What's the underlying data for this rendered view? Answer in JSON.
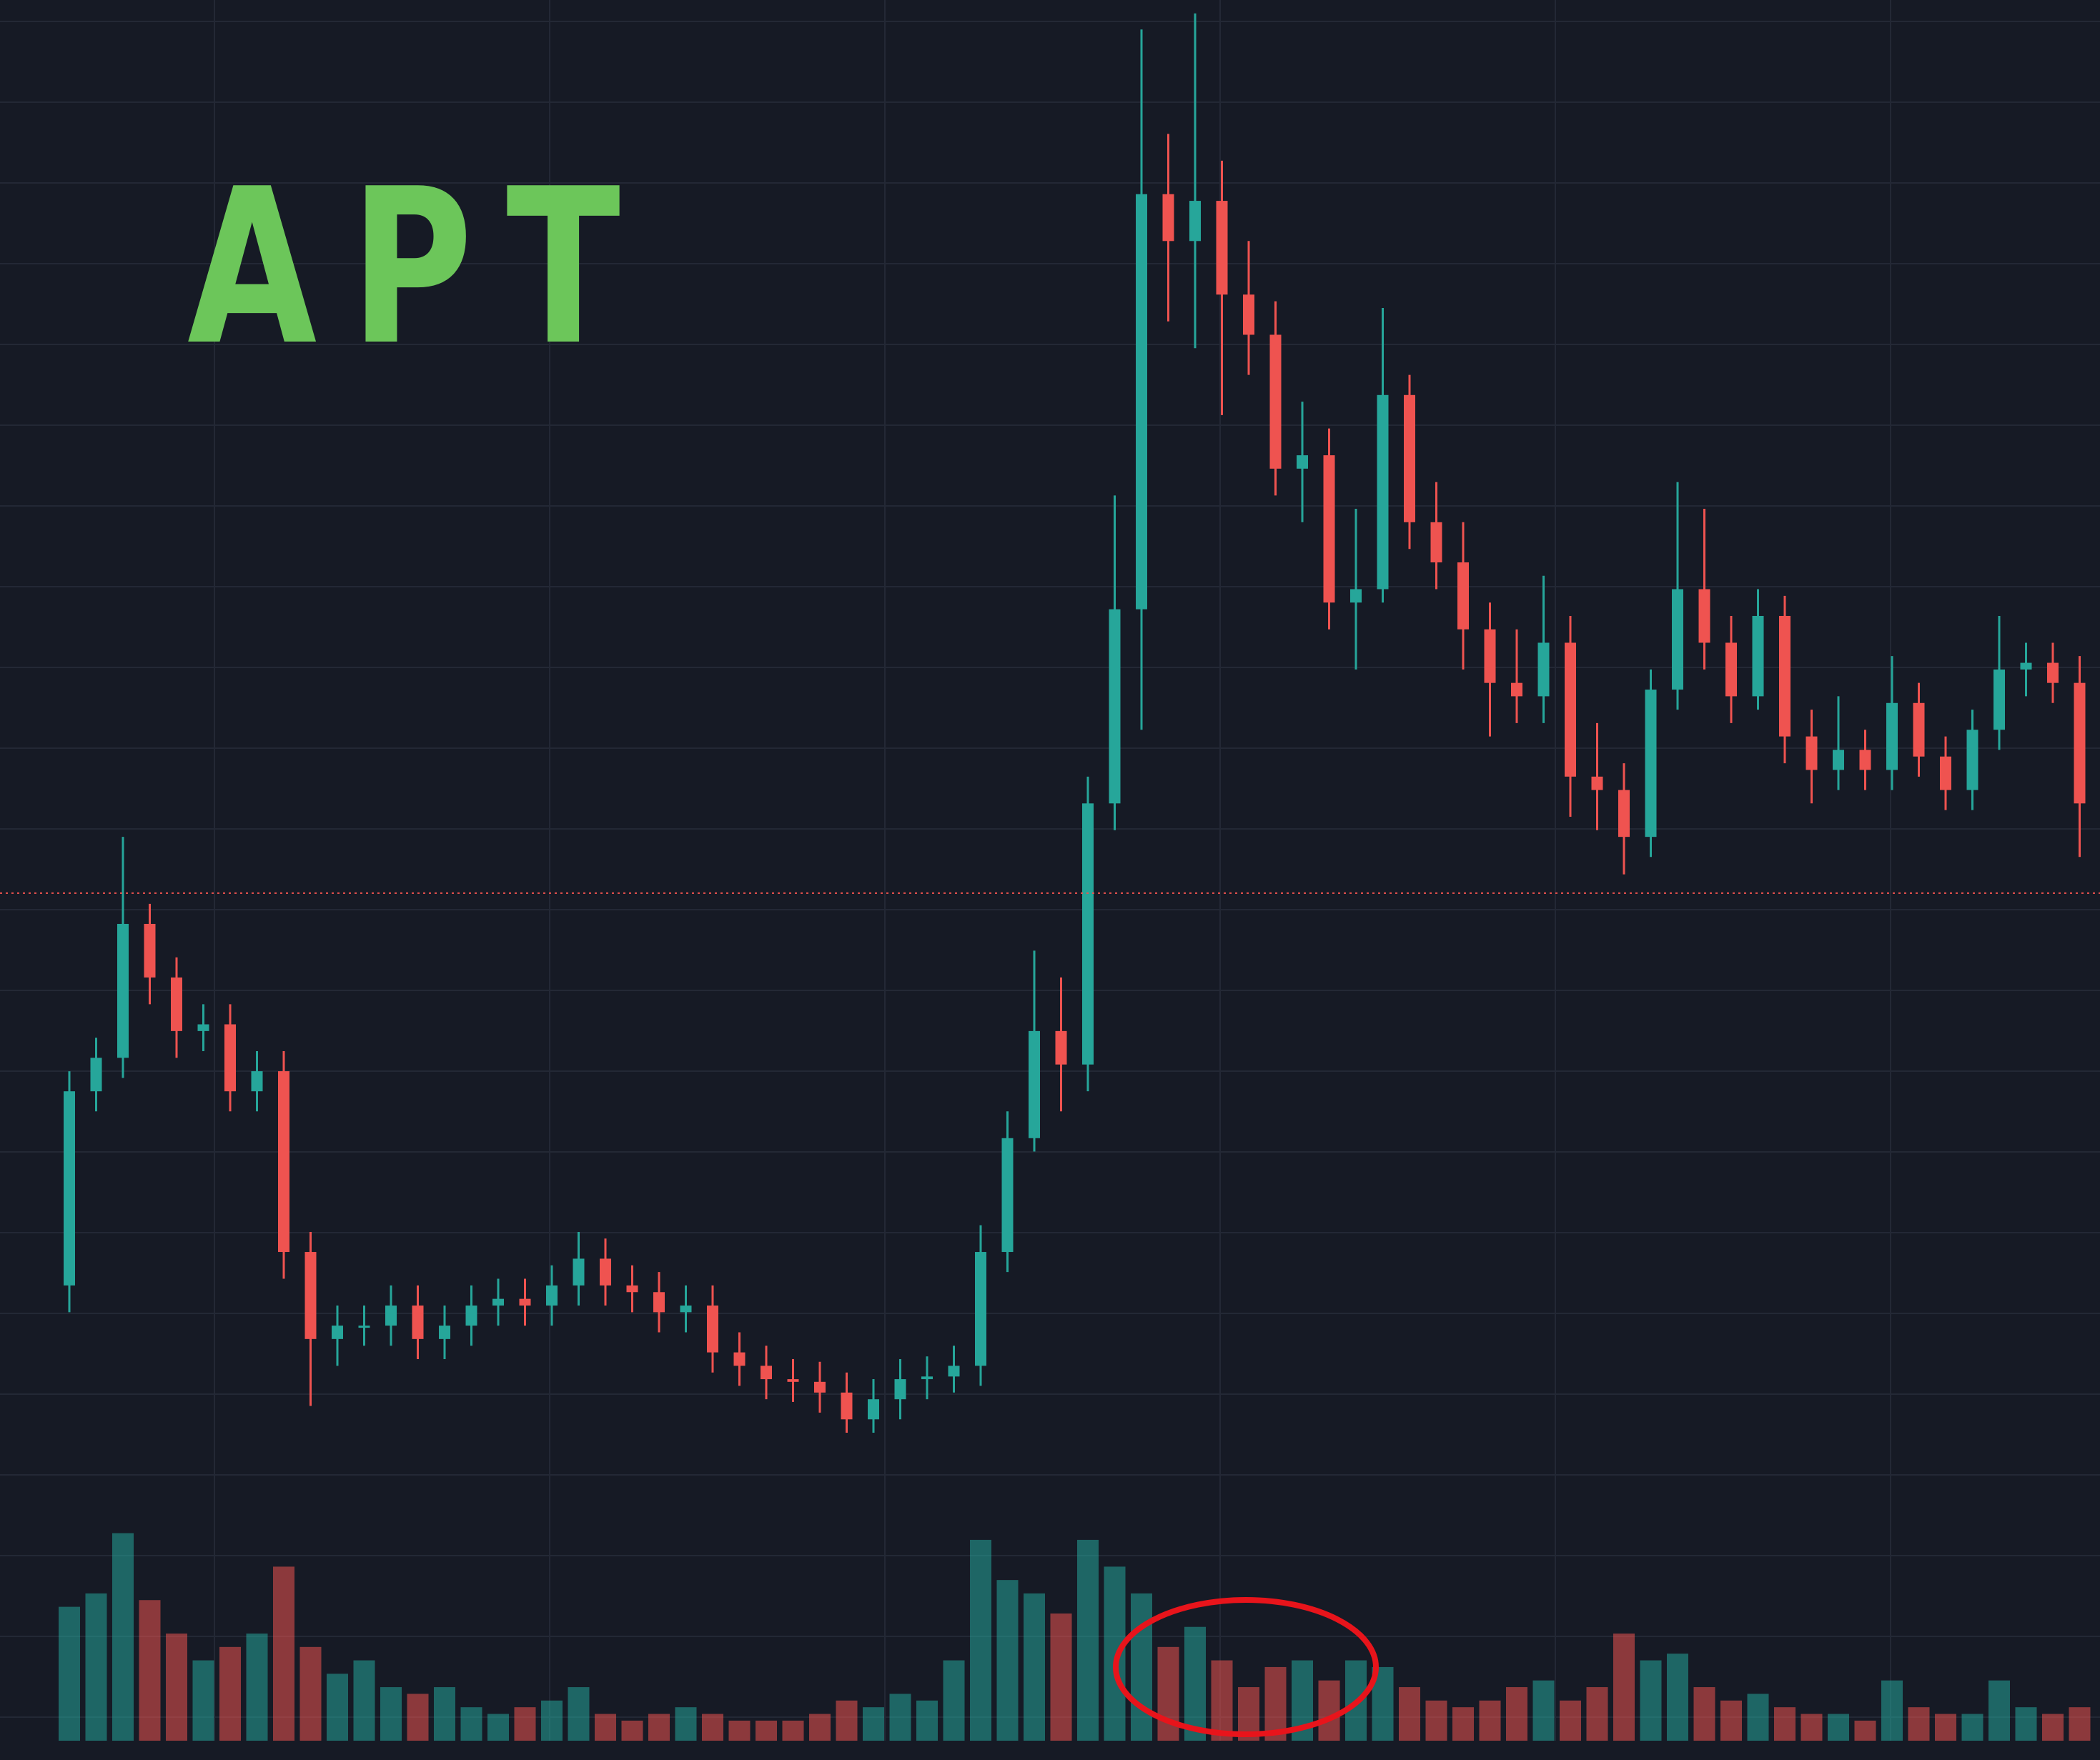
{
  "chart_data": {
    "type": "candlestick",
    "title": "APT",
    "open": [
      34,
      48.5,
      51,
      61,
      57,
      53,
      53.5,
      48.5,
      50,
      36.5,
      30,
      31,
      31,
      32.5,
      30,
      31,
      32.5,
      33,
      32.5,
      34,
      36,
      34,
      33.5,
      32,
      32.5,
      29,
      28,
      27,
      26.8,
      26,
      24,
      25.5,
      27,
      27.2,
      28,
      36.5,
      45,
      53,
      50.5,
      70,
      84.5,
      115.5,
      112,
      115,
      108,
      105,
      95,
      96,
      85,
      86,
      100.5,
      91,
      88,
      83,
      79,
      78,
      82,
      72,
      71,
      67.5,
      78.5,
      86,
      82,
      78,
      84,
      75,
      72.5,
      74,
      72.5,
      77.5,
      73.5,
      71,
      75.5,
      80,
      80.5,
      79
    ],
    "high": [
      50,
      52.5,
      67.5,
      62.5,
      58.5,
      55,
      55,
      51.5,
      51.5,
      38,
      32.5,
      32.5,
      34,
      34,
      32.5,
      34,
      34.5,
      34.5,
      35.5,
      38,
      37.5,
      35.5,
      35,
      34,
      34,
      30.5,
      29.5,
      28.5,
      28.3,
      27.5,
      27,
      28.5,
      28.7,
      29.5,
      38.5,
      47,
      59,
      57,
      72,
      93,
      127.8,
      120,
      129,
      118,
      112,
      107.5,
      100,
      98,
      92,
      107,
      102,
      94,
      91,
      85,
      83,
      87,
      84,
      76,
      73,
      80,
      94,
      92,
      84,
      86,
      85.5,
      77,
      78,
      75.5,
      81,
      79,
      75,
      77,
      84,
      82,
      82,
      81
    ],
    "low": [
      32,
      47,
      49.5,
      55,
      51,
      51.5,
      47,
      47,
      34.5,
      25,
      28,
      29.5,
      29.5,
      28.5,
      28.5,
      29.5,
      31,
      31,
      31,
      32.5,
      32.5,
      32,
      30.5,
      30.5,
      27.5,
      26.5,
      25.5,
      25.3,
      24.5,
      23,
      23,
      24,
      25.5,
      26,
      26.5,
      35,
      44,
      47,
      48.5,
      68,
      75.5,
      106,
      104,
      99,
      102,
      93,
      91,
      83,
      80,
      85,
      89,
      86,
      80,
      75,
      76,
      76,
      69,
      68,
      64.7,
      66,
      77,
      80,
      76,
      77,
      73,
      70,
      71,
      71,
      71,
      72,
      69.5,
      69.5,
      74,
      78,
      77.5,
      66
    ],
    "close": [
      48.5,
      51,
      61,
      57,
      53,
      53.5,
      48.5,
      50,
      36.5,
      30,
      31,
      31,
      32.5,
      30,
      31,
      32.5,
      33,
      32.5,
      34,
      36,
      34,
      33.5,
      32,
      32.5,
      29,
      28,
      27,
      26.8,
      26,
      24,
      25.5,
      27,
      27.2,
      28,
      36.5,
      45,
      53,
      50.5,
      70,
      84.5,
      115.5,
      112,
      115,
      108,
      105,
      95,
      96,
      85,
      86,
      100.5,
      91,
      88,
      83,
      79,
      78,
      82,
      72,
      71,
      67.5,
      78.5,
      86,
      82,
      78,
      84,
      75,
      72.5,
      74,
      72.5,
      77.5,
      73.5,
      71,
      75.5,
      80,
      80.5,
      79,
      70
    ],
    "volume": [
      100,
      110,
      155,
      105,
      80,
      60,
      70,
      80,
      130,
      70,
      50,
      60,
      40,
      35,
      40,
      25,
      20,
      25,
      30,
      40,
      20,
      15,
      20,
      25,
      20,
      15,
      15,
      15,
      20,
      30,
      25,
      35,
      30,
      60,
      150,
      120,
      110,
      95,
      150,
      130,
      110,
      70,
      85,
      60,
      40,
      55,
      60,
      45,
      60,
      55,
      40,
      30,
      25,
      30,
      40,
      45,
      30,
      40,
      80,
      60,
      65,
      40,
      30,
      35,
      25,
      20,
      20,
      15,
      45,
      25,
      20,
      20,
      45,
      25,
      20,
      25
    ],
    "ylim": [
      0,
      130
    ],
    "y2lim": [
      0,
      1300
    ],
    "up_color": "#26a69a",
    "down_color": "#ef5350",
    "price_line": 63.3,
    "price_line_color": "#ef5350"
  }
}
